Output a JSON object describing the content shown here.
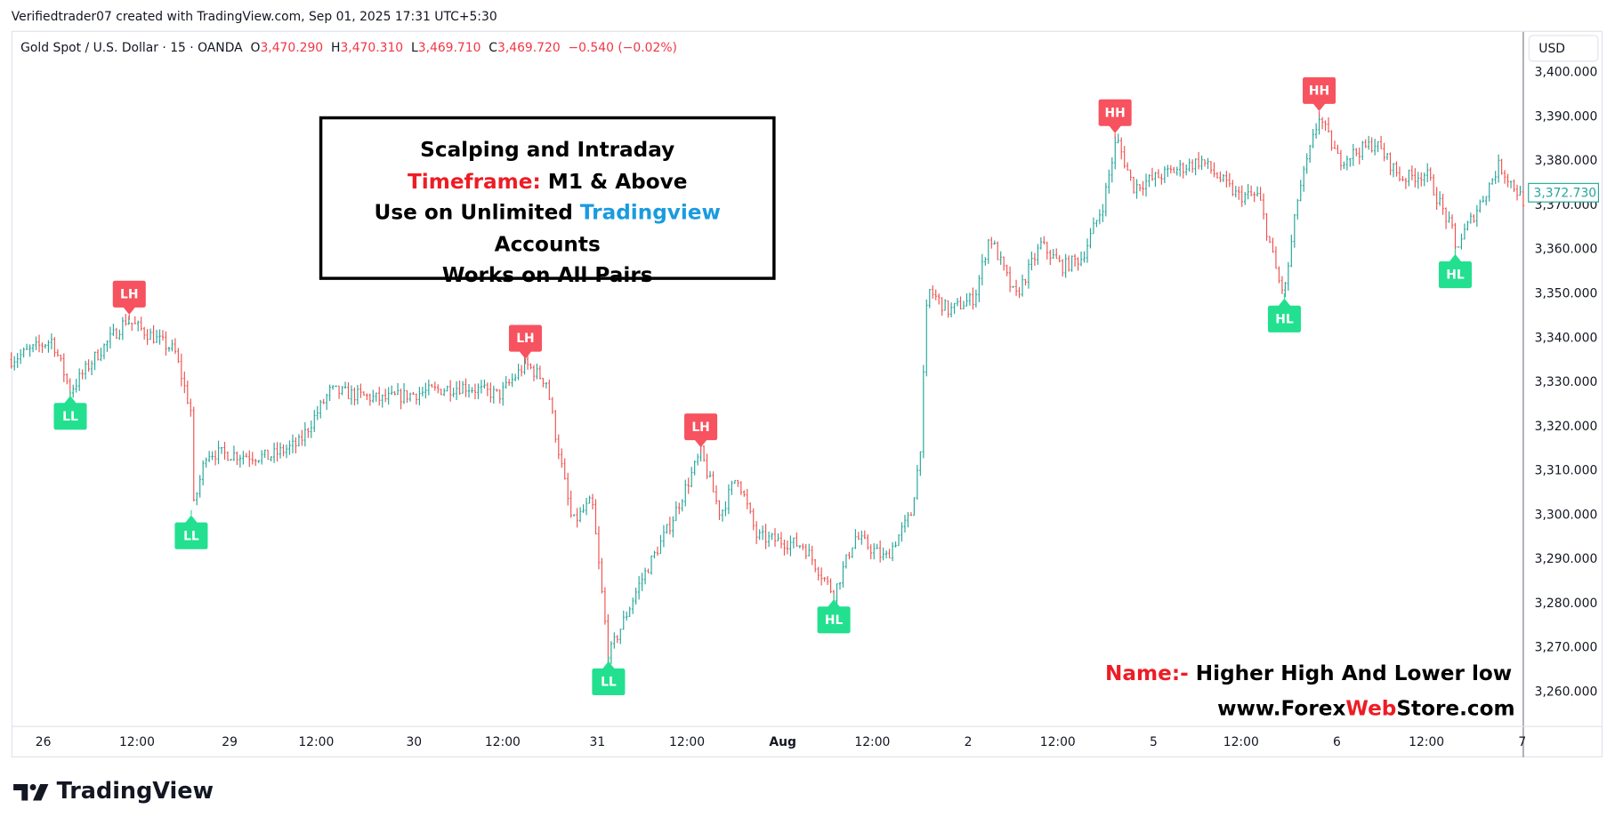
{
  "credit": "Verifiedtrader07 created with TradingView.com, Sep 01, 2025 17:31 UTC+5:30",
  "legend": {
    "symbol": "Gold Spot / U.S. Dollar · 15 · OANDA",
    "o_label": "O",
    "o": "3,470.290",
    "h_label": "H",
    "h": "3,470.310",
    "l_label": "L",
    "l": "3,469.710",
    "c_label": "C",
    "c": "3,469.720",
    "change": "−0.540 (−0.02%)"
  },
  "currency": "USD",
  "infobox": {
    "line1": "Scalping and Intraday",
    "line2_red": "Timeframe:",
    "line2_rest": " M1 & Above",
    "line3_a": "Use on Unlimited ",
    "line3_blue": "Tradingview",
    "line3_b": " Accounts",
    "line4": "Works on All Pairs"
  },
  "footer_note": {
    "name_label": "Name:-",
    "name_value": " Higher High And Lower low",
    "site_a": "www.Forex",
    "site_red": "Web",
    "site_b": "Store.com"
  },
  "brand": "TradingView",
  "colors": {
    "up": "#26a69a",
    "down": "#ef5350",
    "high_label": "#f7525f",
    "low_label": "#22e08f",
    "last_price": "#26a69a"
  },
  "chart_data": {
    "type": "ohlc-bar",
    "ylim": [
      3252,
      3407
    ],
    "y_ticks": [
      3400,
      3390,
      3380,
      3370,
      3360,
      3350,
      3340,
      3330,
      3320,
      3310,
      3300,
      3290,
      3280,
      3270,
      3260
    ],
    "y_tick_labels": [
      "3,400.000",
      "3,390.000",
      "3,380.000",
      "3,370.000",
      "3,360.000",
      "3,350.000",
      "3,340.000",
      "3,330.000",
      "3,320.000",
      "3,310.000",
      "3,300.000",
      "3,290.000",
      "3,280.000",
      "3,270.000",
      "3,260.000"
    ],
    "x_tick_labels": [
      "26",
      "12:00",
      "29",
      "12:00",
      "30",
      "12:00",
      "31",
      "12:00",
      "Aug",
      "12:00",
      "2",
      "12:00",
      "5",
      "12:00",
      "6",
      "12:00",
      "7"
    ],
    "last_price": "3,372.730",
    "last_price_value": 3372.73,
    "price_path": [
      [
        0,
        3335
      ],
      [
        0.027,
        3339.5
      ],
      [
        0.039,
        3328
      ],
      [
        0.054,
        3335
      ],
      [
        0.076,
        3344
      ],
      [
        0.108,
        3337
      ],
      [
        0.119,
        3323
      ],
      [
        0.12,
        3301
      ],
      [
        0.129,
        3314
      ],
      [
        0.17,
        3313
      ],
      [
        0.19,
        3316
      ],
      [
        0.211,
        3328
      ],
      [
        0.245,
        3326
      ],
      [
        0.279,
        3328
      ],
      [
        0.299,
        3329
      ],
      [
        0.323,
        3327
      ],
      [
        0.34,
        3334
      ],
      [
        0.354,
        3330
      ],
      [
        0.36,
        3318
      ],
      [
        0.371,
        3298
      ],
      [
        0.384,
        3303
      ],
      [
        0.395,
        3268
      ],
      [
        0.415,
        3284
      ],
      [
        0.436,
        3298
      ],
      [
        0.456,
        3314
      ],
      [
        0.469,
        3300
      ],
      [
        0.48,
        3309
      ],
      [
        0.493,
        3295
      ],
      [
        0.524,
        3293
      ],
      [
        0.544,
        3282
      ],
      [
        0.558,
        3295
      ],
      [
        0.578,
        3290
      ],
      [
        0.595,
        3300
      ],
      [
        0.601,
        3314
      ],
      [
        0.606,
        3351
      ],
      [
        0.62,
        3346
      ],
      [
        0.637,
        3349
      ],
      [
        0.647,
        3363
      ],
      [
        0.664,
        3349
      ],
      [
        0.681,
        3361
      ],
      [
        0.695,
        3356
      ],
      [
        0.708,
        3358
      ],
      [
        0.722,
        3370
      ],
      [
        0.731,
        3385
      ],
      [
        0.742,
        3374
      ],
      [
        0.763,
        3377
      ],
      [
        0.787,
        3380
      ],
      [
        0.811,
        3372
      ],
      [
        0.825,
        3372
      ],
      [
        0.838,
        3353
      ],
      [
        0.842,
        3350
      ],
      [
        0.851,
        3372
      ],
      [
        0.865,
        3390
      ],
      [
        0.878,
        3380
      ],
      [
        0.902,
        3384
      ],
      [
        0.919,
        3376
      ],
      [
        0.936,
        3377
      ],
      [
        0.953,
        3364
      ],
      [
        0.955,
        3360
      ],
      [
        0.974,
        3372
      ],
      [
        0.984,
        3379
      ],
      [
        1.0,
        3371
      ]
    ],
    "swing_labels": [
      {
        "text": "LL",
        "type": "low",
        "pos": 0.039,
        "price": 3328
      },
      {
        "text": "LH",
        "type": "high",
        "pos": 0.078,
        "price": 3344
      },
      {
        "text": "LL",
        "type": "low",
        "pos": 0.119,
        "price": 3301
      },
      {
        "text": "LH",
        "type": "high",
        "pos": 0.34,
        "price": 3334
      },
      {
        "text": "LL",
        "type": "low",
        "pos": 0.395,
        "price": 3268
      },
      {
        "text": "LH",
        "type": "high",
        "pos": 0.456,
        "price": 3314
      },
      {
        "text": "HL",
        "type": "low",
        "pos": 0.544,
        "price": 3282
      },
      {
        "text": "HH",
        "type": "high",
        "pos": 0.73,
        "price": 3385
      },
      {
        "text": "HL",
        "type": "low",
        "pos": 0.842,
        "price": 3350
      },
      {
        "text": "HH",
        "type": "high",
        "pos": 0.865,
        "price": 3390
      },
      {
        "text": "HL",
        "type": "low",
        "pos": 0.955,
        "price": 3360
      }
    ]
  }
}
